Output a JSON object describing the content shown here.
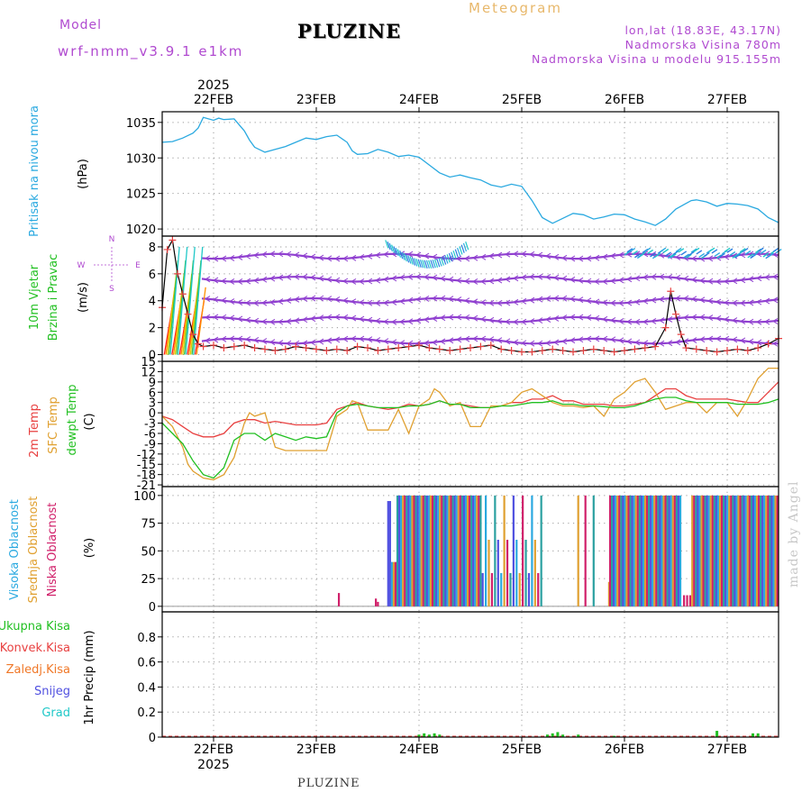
{
  "header": {
    "model_label": "Model",
    "model_run": "wrf-nmm_v3.9.1 e1km",
    "title": "PLUZINE",
    "meteogram_label": "Meteogram",
    "lonlat": "lon,lat (18.83E, 43.17N)",
    "elevation": "Nadmorska Visina 780m",
    "model_elevation": "Nadmorska Visina u modelu 915.155m",
    "footer": "PLUZINE",
    "watermark": "made by Angel"
  },
  "colors": {
    "pressure": "#2aa9e0",
    "wind_label": "#22c022",
    "temp2m": "#e84040",
    "sfc": "#e0a030",
    "dewpt": "#22c022",
    "high_cloud": "#2aa9e0",
    "mid_cloud": "#e0a030",
    "low_cloud": "#d0206a",
    "total_precip": "#22c022",
    "conv_precip": "#e84040",
    "frozen_precip": "#f07828",
    "snow": "#5050e0",
    "graupel": "#20c8c8",
    "isotach": "#9040d0"
  },
  "chart_data": [
    {
      "type": "line",
      "panel": "pressure",
      "ylabel_parts": [
        "Pritisak na nivou mora",
        "(hPa)"
      ],
      "x_ticks": [
        {
          "label": "22FEB",
          "x": 1.0
        },
        {
          "label": "23FEB",
          "x": 2.0
        },
        {
          "label": "24FEB",
          "x": 3.0
        },
        {
          "label": "25FEB",
          "x": 4.0
        },
        {
          "label": "26FEB",
          "x": 5.0
        },
        {
          "label": "27FEB",
          "x": 6.0
        }
      ],
      "year_label": "2025",
      "xlim": [
        0.5,
        6.5
      ],
      "ylim": [
        1019,
        1036.5
      ],
      "y_ticks": [
        1020,
        1025,
        1030,
        1035
      ],
      "series": [
        {
          "x": [
            0.5,
            0.6,
            0.7,
            0.8,
            0.85,
            0.9,
            1.0,
            1.05,
            1.1,
            1.2,
            1.3,
            1.35,
            1.4,
            1.5,
            1.6,
            1.7,
            1.8,
            1.9,
            2.0,
            2.1,
            2.2,
            2.3,
            2.35,
            2.4,
            2.5,
            2.6,
            2.7,
            2.8,
            2.9,
            3.0,
            3.1,
            3.2,
            3.3,
            3.4,
            3.5,
            3.6,
            3.7,
            3.8,
            3.9,
            4.0,
            4.1,
            4.2,
            4.3,
            4.4,
            4.5,
            4.6,
            4.7,
            4.8,
            4.9,
            5.0,
            5.1,
            5.2,
            5.3,
            5.4,
            5.5,
            5.6,
            5.65,
            5.7,
            5.8,
            5.9,
            6.0,
            6.1,
            6.2,
            6.3,
            6.4,
            6.5
          ],
          "y": [
            1032.2,
            1032.3,
            1032.8,
            1033.5,
            1034.2,
            1035.7,
            1035.3,
            1035.6,
            1035.4,
            1035.5,
            1033.8,
            1032.5,
            1031.5,
            1030.8,
            1031.2,
            1031.6,
            1032.2,
            1032.8,
            1032.6,
            1033.0,
            1033.2,
            1032.2,
            1031.0,
            1030.5,
            1030.6,
            1031.2,
            1030.8,
            1030.2,
            1030.4,
            1030.1,
            1029.0,
            1027.9,
            1027.3,
            1027.6,
            1027.2,
            1026.9,
            1026.2,
            1025.9,
            1026.3,
            1026.0,
            1024.0,
            1021.6,
            1020.8,
            1021.5,
            1022.2,
            1022.0,
            1021.4,
            1021.7,
            1022.1,
            1022.0,
            1021.4,
            1021.0,
            1020.5,
            1021.4,
            1022.8,
            1023.6,
            1024.0,
            1024.1,
            1023.8,
            1023.2,
            1023.6,
            1023.5,
            1023.3,
            1022.8,
            1021.6,
            1020.9
          ]
        }
      ]
    },
    {
      "type": "wind-barbs",
      "panel": "wind",
      "ylabel_parts": [
        "10m Vjetar",
        "Brzina i Pravac",
        "(m/s)"
      ],
      "direction_legend": [
        "N",
        "E",
        "S",
        "W"
      ],
      "ylim": [
        -0.5,
        8.8
      ],
      "y_ticks": [
        0,
        2,
        4,
        6,
        8
      ],
      "isotach_levels": [
        1,
        2.6,
        4,
        5.6,
        7.3
      ],
      "speed_series": {
        "x": [
          0.5,
          0.55,
          0.6,
          0.65,
          0.7,
          0.75,
          0.8,
          0.85,
          0.9,
          1.0,
          1.1,
          1.2,
          1.3,
          1.4,
          1.5,
          1.6,
          1.7,
          1.8,
          1.9,
          2.0,
          2.1,
          2.2,
          2.3,
          2.4,
          2.5,
          2.6,
          2.7,
          2.8,
          2.9,
          3.0,
          3.1,
          3.2,
          3.3,
          3.4,
          3.5,
          3.6,
          3.7,
          3.8,
          3.9,
          4.0,
          4.1,
          4.2,
          4.3,
          4.4,
          4.5,
          4.6,
          4.7,
          4.8,
          4.9,
          5.0,
          5.1,
          5.2,
          5.3,
          5.4,
          5.45,
          5.5,
          5.55,
          5.6,
          5.7,
          5.8,
          5.9,
          6.0,
          6.1,
          6.2,
          6.3,
          6.4,
          6.5
        ],
        "y": [
          3.5,
          7.8,
          8.5,
          6.0,
          4.5,
          3.0,
          1.5,
          0.8,
          0.6,
          0.7,
          0.5,
          0.6,
          0.7,
          0.5,
          0.4,
          0.3,
          0.4,
          0.6,
          0.5,
          0.4,
          0.3,
          0.4,
          0.3,
          0.6,
          0.5,
          0.3,
          0.4,
          0.5,
          0.6,
          0.7,
          0.5,
          0.4,
          0.3,
          0.4,
          0.5,
          0.6,
          0.7,
          0.4,
          0.3,
          0.2,
          0.2,
          0.3,
          0.4,
          0.3,
          0.2,
          0.3,
          0.4,
          0.3,
          0.2,
          0.3,
          0.4,
          0.5,
          0.6,
          2.0,
          4.7,
          3.0,
          1.5,
          0.5,
          0.4,
          0.3,
          0.2,
          0.3,
          0.4,
          0.3,
          0.5,
          0.8,
          1.2
        ]
      }
    },
    {
      "type": "line",
      "panel": "temperature",
      "ylabel_parts": [
        "2m Temp",
        "SFC Temp",
        "dewpt Temp",
        "(C)"
      ],
      "ylim": [
        -21.5,
        15
      ],
      "y_ticks": [
        -21,
        -18,
        -15,
        -12,
        -9,
        -6,
        -3,
        0,
        3,
        6,
        9,
        12,
        15
      ],
      "series": [
        {
          "name": "2m Temp",
          "x": [
            0.5,
            0.6,
            0.7,
            0.8,
            0.9,
            1.0,
            1.1,
            1.2,
            1.3,
            1.4,
            1.5,
            1.6,
            1.7,
            1.8,
            1.9,
            2.0,
            2.1,
            2.2,
            2.3,
            2.4,
            2.5,
            2.6,
            2.7,
            2.8,
            2.9,
            3.0,
            3.1,
            3.2,
            3.3,
            3.4,
            3.5,
            3.6,
            3.7,
            3.8,
            3.9,
            4.0,
            4.1,
            4.2,
            4.3,
            4.4,
            4.5,
            4.6,
            4.7,
            4.8,
            4.9,
            5.0,
            5.1,
            5.2,
            5.3,
            5.4,
            5.5,
            5.6,
            5.7,
            5.8,
            5.9,
            6.0,
            6.1,
            6.2,
            6.3,
            6.4,
            6.5
          ],
          "y": [
            -1,
            -2,
            -4,
            -6,
            -7,
            -7,
            -6,
            -3,
            -2,
            -2,
            -3,
            -2.5,
            -3,
            -3.5,
            -3.5,
            -3.5,
            -3,
            1,
            2,
            3,
            2,
            1.5,
            1,
            1.5,
            2.5,
            2,
            2.5,
            3.5,
            2.5,
            2.5,
            2,
            1.5,
            1.5,
            2,
            3,
            3,
            4,
            4,
            5,
            3.5,
            3.5,
            2.5,
            2.5,
            2.5,
            2.0,
            2.0,
            2.5,
            3,
            5,
            7,
            7,
            5,
            4,
            4,
            4,
            4,
            3.5,
            3,
            3,
            6,
            9
          ]
        },
        {
          "name": "SFC Temp",
          "x": [
            0.5,
            0.6,
            0.7,
            0.75,
            0.8,
            0.9,
            1.0,
            1.1,
            1.2,
            1.3,
            1.35,
            1.4,
            1.5,
            1.6,
            1.7,
            1.8,
            1.9,
            2.0,
            2.1,
            2.2,
            2.3,
            2.35,
            2.4,
            2.5,
            2.6,
            2.7,
            2.8,
            2.9,
            3.0,
            3.1,
            3.15,
            3.2,
            3.3,
            3.4,
            3.5,
            3.6,
            3.7,
            3.8,
            3.9,
            4.0,
            4.1,
            4.2,
            4.3,
            4.4,
            4.5,
            4.6,
            4.7,
            4.8,
            4.9,
            5.0,
            5.1,
            5.2,
            5.3,
            5.4,
            5.5,
            5.6,
            5.7,
            5.8,
            5.9,
            6.0,
            6.1,
            6.2,
            6.3,
            6.4,
            6.5
          ],
          "y": [
            -1,
            -4,
            -10,
            -15,
            -17,
            -19,
            -19.5,
            -18,
            -13,
            -3,
            0,
            -1,
            0,
            -10,
            -11,
            -11,
            -11,
            -11,
            -11,
            -1,
            1,
            3.5,
            3,
            -5,
            -5,
            -5,
            1,
            -6,
            2,
            4,
            7,
            6,
            2,
            3,
            -4,
            -4,
            2,
            2,
            3,
            6,
            7,
            5,
            3,
            2,
            2,
            1.5,
            2,
            -1,
            4,
            6,
            9,
            10,
            6,
            1,
            2,
            3,
            3,
            0,
            3,
            3,
            -1,
            4,
            10,
            13,
            13
          ]
        },
        {
          "name": "dewpt Temp",
          "x": [
            0.5,
            0.6,
            0.7,
            0.8,
            0.9,
            1.0,
            1.1,
            1.2,
            1.3,
            1.4,
            1.5,
            1.6,
            1.7,
            1.8,
            1.9,
            2.0,
            2.1,
            2.2,
            2.3,
            2.4,
            2.5,
            2.6,
            2.7,
            2.8,
            2.9,
            3.0,
            3.1,
            3.2,
            3.3,
            3.4,
            3.5,
            3.6,
            3.7,
            3.8,
            3.9,
            4.0,
            4.1,
            4.2,
            4.3,
            4.4,
            4.5,
            4.6,
            4.7,
            4.8,
            4.9,
            5.0,
            5.1,
            5.2,
            5.3,
            5.4,
            5.5,
            5.6,
            5.7,
            5.8,
            5.9,
            6.0,
            6.1,
            6.2,
            6.3,
            6.4,
            6.5
          ],
          "y": [
            -3,
            -6,
            -9,
            -14,
            -18,
            -19,
            -16,
            -8,
            -6,
            -6,
            -8,
            -6,
            -7,
            -8,
            -7,
            -7.5,
            -7,
            0,
            2,
            2.5,
            2,
            1.5,
            1.5,
            1.5,
            2,
            2,
            2.5,
            3.5,
            2.5,
            2.5,
            1.5,
            1.5,
            1.5,
            2,
            2,
            2.5,
            3,
            3,
            3.5,
            2.5,
            2.5,
            2.0,
            2.0,
            1.8,
            1.5,
            1.5,
            2,
            3,
            4,
            4.5,
            4.5,
            3.5,
            3,
            3,
            3,
            3,
            2.5,
            2.5,
            2.5,
            3,
            4
          ]
        }
      ]
    },
    {
      "type": "bar",
      "panel": "cloud",
      "ylabel_parts": [
        "Visoka Oblacnost",
        "Srednja Oblacnost",
        "Niska Oblacnost",
        "(%)"
      ],
      "ylim": [
        -5,
        108
      ],
      "y_ticks": [
        0,
        25,
        50,
        75,
        100
      ]
    },
    {
      "type": "bar",
      "panel": "precip",
      "ylabel_parts": [
        "1hr Precip (mm)"
      ],
      "legend": [
        "Ukupna Kisa",
        "Konvek.Kisa",
        "Zaledj.Kisa",
        "Snijeg",
        "Grad"
      ],
      "ylim": [
        0,
        1.0
      ],
      "y_ticks": [
        0,
        0.2,
        0.4,
        0.6,
        0.8
      ],
      "y_tick_labels": [
        "0",
        "0.2",
        "0.4",
        "0.6",
        "0.8"
      ],
      "bars": [
        {
          "x": 3.0,
          "y": 0.02
        },
        {
          "x": 3.05,
          "y": 0.03
        },
        {
          "x": 3.1,
          "y": 0.02
        },
        {
          "x": 3.15,
          "y": 0.03
        },
        {
          "x": 3.2,
          "y": 0.02
        },
        {
          "x": 4.25,
          "y": 0.02
        },
        {
          "x": 4.3,
          "y": 0.03
        },
        {
          "x": 4.35,
          "y": 0.04
        },
        {
          "x": 4.4,
          "y": 0.02
        },
        {
          "x": 4.55,
          "y": 0.02
        },
        {
          "x": 4.9,
          "y": 0.01
        },
        {
          "x": 5.9,
          "y": 0.05
        },
        {
          "x": 6.25,
          "y": 0.03
        },
        {
          "x": 6.3,
          "y": 0.03
        }
      ]
    }
  ]
}
